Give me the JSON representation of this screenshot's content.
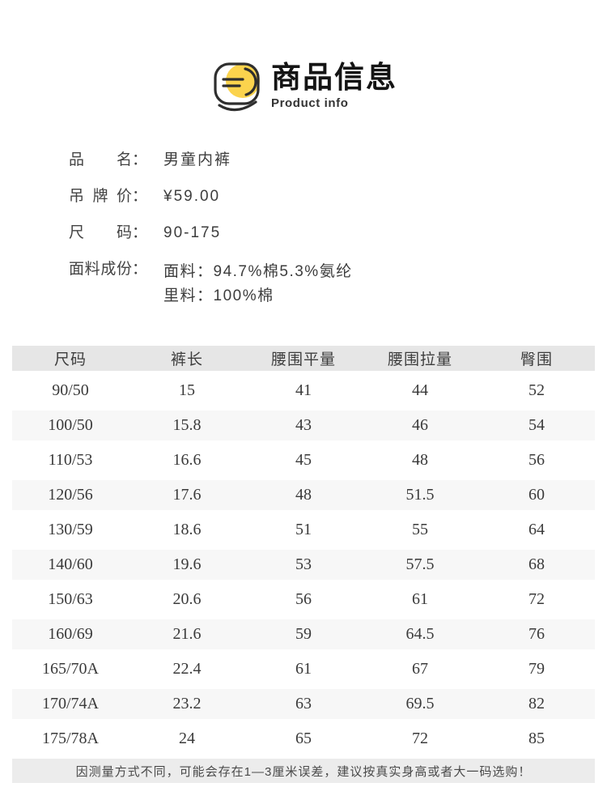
{
  "header": {
    "title": "商品信息",
    "subtitle": "Product info",
    "accent_color": "#fbd34d",
    "outline_color": "#2e2e2e"
  },
  "details": {
    "colon": "：",
    "rows": [
      {
        "label": "品名",
        "value": "男童内裤"
      },
      {
        "label": "吊牌价",
        "value": "¥59.00"
      },
      {
        "label": "尺码",
        "value": "90-175"
      },
      {
        "label": "面料成份",
        "value_lines": [
          "面料：94.7%棉5.3%氨纶",
          "里料：100%棉"
        ]
      }
    ]
  },
  "table": {
    "header_bg": "#e6e6e6",
    "alt_row_bg": "#f7f7f7",
    "columns": [
      "尺码",
      "裤长",
      "腰围平量",
      "腰围拉量",
      "臀围"
    ],
    "rows": [
      [
        "90/50",
        "15",
        "41",
        "44",
        "52"
      ],
      [
        "100/50",
        "15.8",
        "43",
        "46",
        "54"
      ],
      [
        "110/53",
        "16.6",
        "45",
        "48",
        "56"
      ],
      [
        "120/56",
        "17.6",
        "48",
        "51.5",
        "60"
      ],
      [
        "130/59",
        "18.6",
        "51",
        "55",
        "64"
      ],
      [
        "140/60",
        "19.6",
        "53",
        "57.5",
        "68"
      ],
      [
        "150/63",
        "20.6",
        "56",
        "61",
        "72"
      ],
      [
        "160/69",
        "21.6",
        "59",
        "64.5",
        "76"
      ],
      [
        "165/70A",
        "22.4",
        "61",
        "67",
        "79"
      ],
      [
        "170/74A",
        "23.2",
        "63",
        "69.5",
        "82"
      ],
      [
        "175/78A",
        "24",
        "65",
        "72",
        "85"
      ]
    ]
  },
  "footer": {
    "note": "因测量方式不同，可能会存在1—3厘米误差，建议按真实身高或者大一码选购！"
  }
}
